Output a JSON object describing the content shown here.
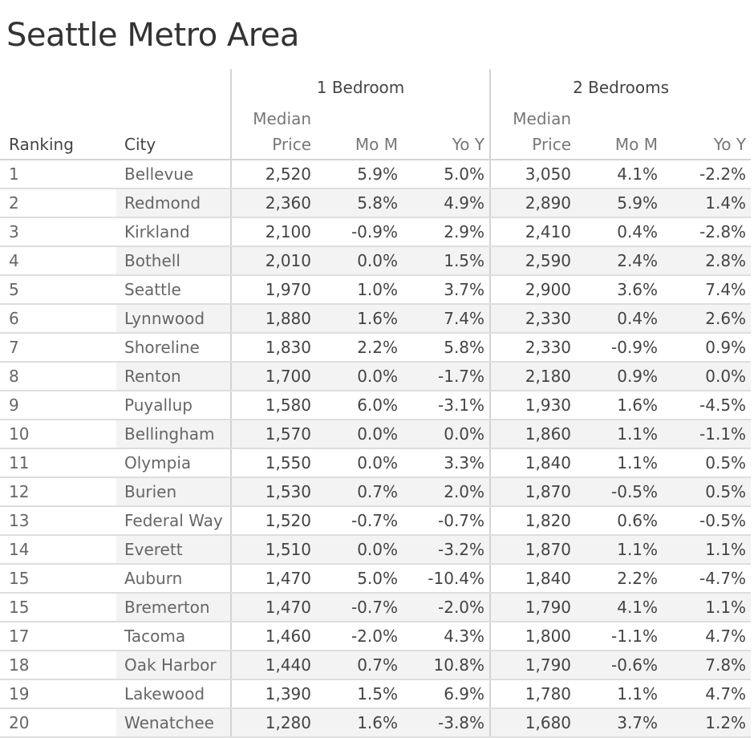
{
  "chart_data": {
    "type": "table",
    "title": "Seattle Metro Area",
    "column_groups": [
      "1 Bedroom",
      "2 Bedrooms"
    ],
    "columns": {
      "ranking": "Ranking",
      "city": "City",
      "median_line1": "Median",
      "median_line2": "Price",
      "mom": "Mo M",
      "yoy": "Yo Y"
    },
    "rows": [
      {
        "rank": "1",
        "city": "Bellevue",
        "b1_price": "2,520",
        "b1_mom": "5.9%",
        "b1_yoy": "5.0%",
        "b2_price": "3,050",
        "b2_mom": "4.1%",
        "b2_yoy": "-2.2%"
      },
      {
        "rank": "2",
        "city": "Redmond",
        "b1_price": "2,360",
        "b1_mom": "5.8%",
        "b1_yoy": "4.9%",
        "b2_price": "2,890",
        "b2_mom": "5.9%",
        "b2_yoy": "1.4%"
      },
      {
        "rank": "3",
        "city": "Kirkland",
        "b1_price": "2,100",
        "b1_mom": "-0.9%",
        "b1_yoy": "2.9%",
        "b2_price": "2,410",
        "b2_mom": "0.4%",
        "b2_yoy": "-2.8%"
      },
      {
        "rank": "4",
        "city": "Bothell",
        "b1_price": "2,010",
        "b1_mom": "0.0%",
        "b1_yoy": "1.5%",
        "b2_price": "2,590",
        "b2_mom": "2.4%",
        "b2_yoy": "2.8%"
      },
      {
        "rank": "5",
        "city": "Seattle",
        "b1_price": "1,970",
        "b1_mom": "1.0%",
        "b1_yoy": "3.7%",
        "b2_price": "2,900",
        "b2_mom": "3.6%",
        "b2_yoy": "7.4%"
      },
      {
        "rank": "6",
        "city": "Lynnwood",
        "b1_price": "1,880",
        "b1_mom": "1.6%",
        "b1_yoy": "7.4%",
        "b2_price": "2,330",
        "b2_mom": "0.4%",
        "b2_yoy": "2.6%"
      },
      {
        "rank": "7",
        "city": "Shoreline",
        "b1_price": "1,830",
        "b1_mom": "2.2%",
        "b1_yoy": "5.8%",
        "b2_price": "2,330",
        "b2_mom": "-0.9%",
        "b2_yoy": "0.9%"
      },
      {
        "rank": "8",
        "city": "Renton",
        "b1_price": "1,700",
        "b1_mom": "0.0%",
        "b1_yoy": "-1.7%",
        "b2_price": "2,180",
        "b2_mom": "0.9%",
        "b2_yoy": "0.0%"
      },
      {
        "rank": "9",
        "city": "Puyallup",
        "b1_price": "1,580",
        "b1_mom": "6.0%",
        "b1_yoy": "-3.1%",
        "b2_price": "1,930",
        "b2_mom": "1.6%",
        "b2_yoy": "-4.5%"
      },
      {
        "rank": "10",
        "city": "Bellingham",
        "b1_price": "1,570",
        "b1_mom": "0.0%",
        "b1_yoy": "0.0%",
        "b2_price": "1,860",
        "b2_mom": "1.1%",
        "b2_yoy": "-1.1%"
      },
      {
        "rank": "11",
        "city": "Olympia",
        "b1_price": "1,550",
        "b1_mom": "0.0%",
        "b1_yoy": "3.3%",
        "b2_price": "1,840",
        "b2_mom": "1.1%",
        "b2_yoy": "0.5%"
      },
      {
        "rank": "12",
        "city": "Burien",
        "b1_price": "1,530",
        "b1_mom": "0.7%",
        "b1_yoy": "2.0%",
        "b2_price": "1,870",
        "b2_mom": "-0.5%",
        "b2_yoy": "0.5%"
      },
      {
        "rank": "13",
        "city": "Federal Way",
        "b1_price": "1,520",
        "b1_mom": "-0.7%",
        "b1_yoy": "-0.7%",
        "b2_price": "1,820",
        "b2_mom": "0.6%",
        "b2_yoy": "-0.5%"
      },
      {
        "rank": "14",
        "city": "Everett",
        "b1_price": "1,510",
        "b1_mom": "0.0%",
        "b1_yoy": "-3.2%",
        "b2_price": "1,870",
        "b2_mom": "1.1%",
        "b2_yoy": "1.1%"
      },
      {
        "rank": "15",
        "city": "Auburn",
        "b1_price": "1,470",
        "b1_mom": "5.0%",
        "b1_yoy": "-10.4%",
        "b2_price": "1,840",
        "b2_mom": "2.2%",
        "b2_yoy": "-4.7%"
      },
      {
        "rank": "15",
        "city": "Bremerton",
        "b1_price": "1,470",
        "b1_mom": "-0.7%",
        "b1_yoy": "-2.0%",
        "b2_price": "1,790",
        "b2_mom": "4.1%",
        "b2_yoy": "1.1%"
      },
      {
        "rank": "17",
        "city": "Tacoma",
        "b1_price": "1,460",
        "b1_mom": "-2.0%",
        "b1_yoy": "4.3%",
        "b2_price": "1,800",
        "b2_mom": "-1.1%",
        "b2_yoy": "4.7%"
      },
      {
        "rank": "18",
        "city": "Oak Harbor",
        "b1_price": "1,440",
        "b1_mom": "0.7%",
        "b1_yoy": "10.8%",
        "b2_price": "1,790",
        "b2_mom": "-0.6%",
        "b2_yoy": "7.8%"
      },
      {
        "rank": "19",
        "city": "Lakewood",
        "b1_price": "1,390",
        "b1_mom": "1.5%",
        "b1_yoy": "6.9%",
        "b2_price": "1,780",
        "b2_mom": "1.1%",
        "b2_yoy": "4.7%"
      },
      {
        "rank": "20",
        "city": "Wenatchee",
        "b1_price": "1,280",
        "b1_mom": "1.6%",
        "b1_yoy": "-3.8%",
        "b2_price": "1,680",
        "b2_mom": "3.7%",
        "b2_yoy": "1.2%"
      }
    ]
  }
}
